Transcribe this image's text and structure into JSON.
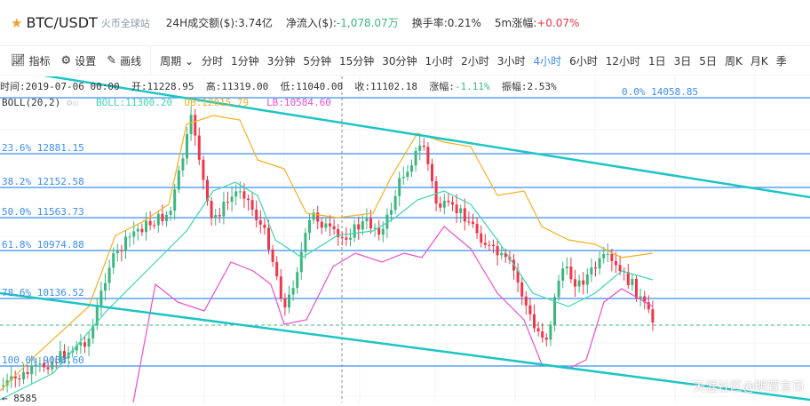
{
  "header": {
    "symbol": "BTC/USDT",
    "exchange": "火币全球站",
    "volume_label": "24H成交额($):",
    "volume": "3.74亿",
    "netflow_label": "净流入($):",
    "netflow": "-1,078.07万",
    "turnover_label": "换手率:",
    "turnover": "0.21%",
    "change5m_label": "5m涨幅:",
    "change5m": "+0.07%"
  },
  "toolbar": {
    "indicator": "指标",
    "settings": "设置",
    "draw": "画线",
    "period": "周期",
    "periods": [
      "分时",
      "1分钟",
      "3分钟",
      "5分钟",
      "15分钟",
      "30分钟",
      "1小时",
      "2小时",
      "3小时",
      "4小时",
      "6小时",
      "12小时",
      "1日",
      "3日",
      "5日",
      "周K",
      "月K",
      "季"
    ],
    "active_period": "4小时"
  },
  "info": {
    "time": "时间:2019-07-06 00:00",
    "open": "开:11228.95",
    "high": "高:11319.00",
    "low": "低:11040.00",
    "close": "收:11102.18",
    "change_label": "涨幅:",
    "change": "-1.11%",
    "amp": "振幅:2.53%"
  },
  "boll": {
    "name": "BOLL(20,2)",
    "mid": "BOLL:11300.20",
    "ub": "UB:12015.79",
    "lb": "LB:10584.60"
  },
  "fib": [
    {
      "label": "0.0% 14058.85"
    },
    {
      "label": "23.6% 12881.15"
    },
    {
      "label": "38.2% 12152.58"
    },
    {
      "label": "50.0% 11563.73"
    },
    {
      "label": "61.8% 10974.88"
    },
    {
      "label": "78.6% 10136.52"
    },
    {
      "label": "100.0% 9068.60"
    }
  ],
  "low_mark": "← 8585",
  "watermark": "天涯社区@明萱言币",
  "colors": {
    "up": "#3bb77e",
    "down": "#f0364a",
    "fib": "#3d8ef0",
    "trend": "#1ec4c4",
    "boll_mid": "#3dd6b0",
    "boll_up": "#f5b021",
    "boll_low": "#ea4fd0",
    "active": "#3d8ef0"
  }
}
